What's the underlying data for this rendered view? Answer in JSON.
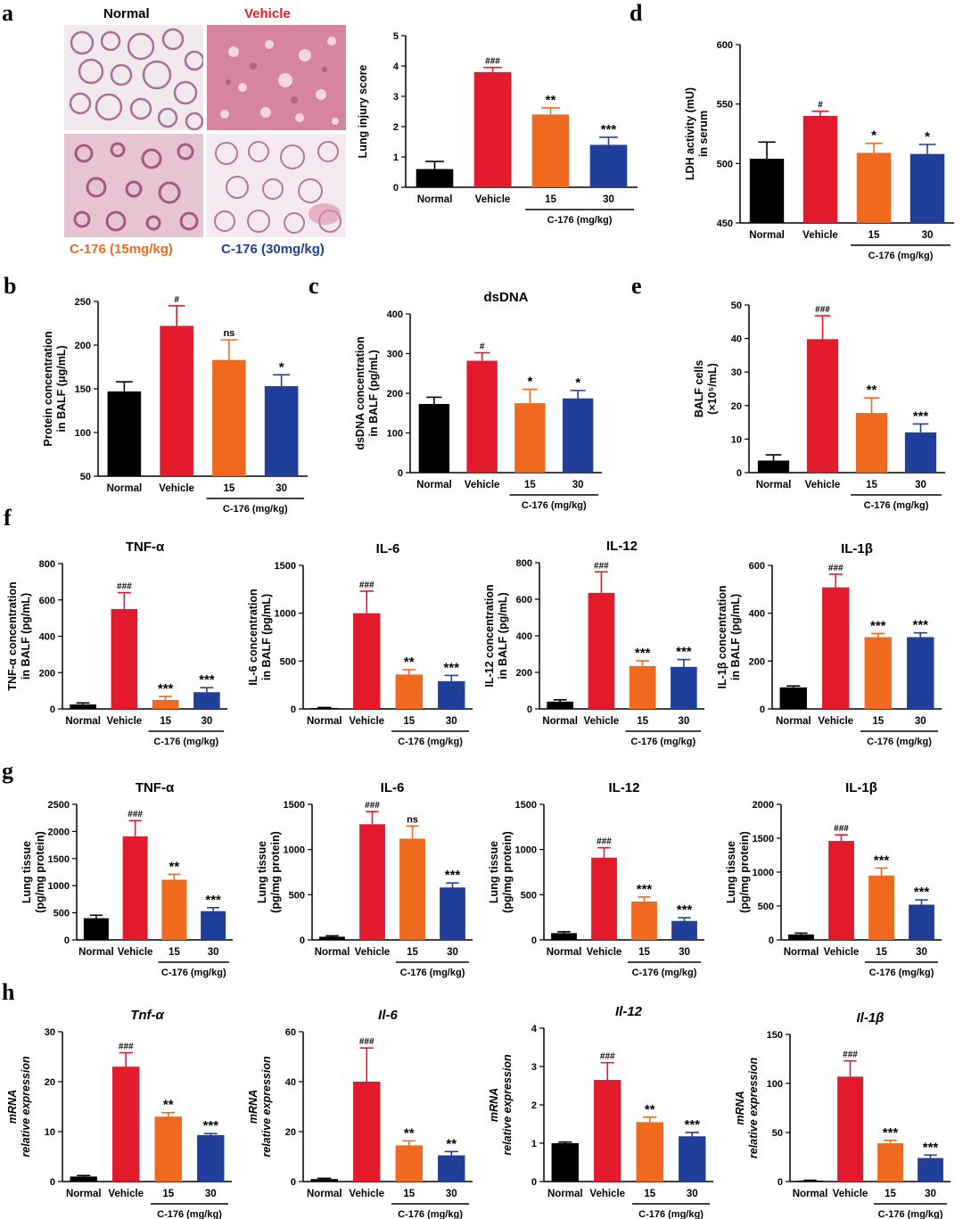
{
  "colors": {
    "normal": "#000000",
    "vehicle": "#e31a2b",
    "c15": "#ef6a1e",
    "c30": "#1f3f9a",
    "axis": "#000000"
  },
  "panels": {
    "a": "a",
    "b": "b",
    "c": "c",
    "d": "d",
    "e": "e",
    "f": "f",
    "g": "g",
    "h": "h"
  },
  "histology": {
    "normal_label": "Normal",
    "vehicle_label": "Vehicle",
    "c15_label": "C-176 (15mg/kg)",
    "c30_label": "C-176 (30mg/kg)"
  },
  "chart_data": [
    {
      "id": "lung_injury",
      "type": "bar",
      "title": "",
      "ylabel": "Lung injury score",
      "ylim": [
        0,
        5
      ],
      "yticks": [
        0,
        1,
        2,
        3,
        4,
        5
      ],
      "categories": [
        "Normal",
        "Vehicle",
        "15",
        "30"
      ],
      "values": [
        0.6,
        3.8,
        2.4,
        1.4
      ],
      "errors": [
        0.25,
        0.15,
        0.22,
        0.25
      ],
      "sig": [
        "",
        "###",
        "**",
        "***"
      ],
      "group_label": "C-176 (mg/kg)"
    },
    {
      "id": "ldh",
      "type": "bar",
      "title": "",
      "ylabel": "LDH activity (mU) in serum",
      "ylim": [
        450,
        600
      ],
      "yticks": [
        450,
        500,
        550,
        600
      ],
      "categories": [
        "Normal",
        "Vehicle",
        "15",
        "30"
      ],
      "values": [
        504,
        540,
        509,
        508
      ],
      "errors": [
        14,
        4,
        8,
        8
      ],
      "sig": [
        "",
        "#",
        "*",
        "*"
      ],
      "group_label": "C-176 (mg/kg)"
    },
    {
      "id": "protein",
      "type": "bar",
      "title": "",
      "ylabel": "Protein concentration in BALF (μg/mL)",
      "ylim": [
        50,
        250
      ],
      "yticks": [
        50,
        100,
        150,
        200,
        250
      ],
      "categories": [
        "Normal",
        "Vehicle",
        "15",
        "30"
      ],
      "values": [
        147,
        222,
        183,
        153
      ],
      "errors": [
        11,
        23,
        23,
        13
      ],
      "sig": [
        "",
        "#",
        "ns",
        "*"
      ],
      "group_label": "C-176 (mg/kg)"
    },
    {
      "id": "dsdna",
      "type": "bar",
      "title": "dsDNA",
      "ylabel": "dsDNA concentration in BALF (pg/mL)",
      "ylim": [
        0,
        400
      ],
      "yticks": [
        0,
        100,
        200,
        300,
        400
      ],
      "categories": [
        "Normal",
        "Vehicle",
        "15",
        "30"
      ],
      "values": [
        173,
        282,
        175,
        187
      ],
      "errors": [
        17,
        20,
        35,
        20
      ],
      "sig": [
        "",
        "#",
        "*",
        "*"
      ],
      "group_label": "C-176 (mg/kg)"
    },
    {
      "id": "balf_cells",
      "type": "bar",
      "title": "",
      "ylabel": "BALF cells (×10⁵/mL)",
      "ylim": [
        0,
        50
      ],
      "yticks": [
        0,
        10,
        20,
        30,
        40,
        50
      ],
      "categories": [
        "Normal",
        "Vehicle",
        "15",
        "30"
      ],
      "values": [
        3.6,
        39.8,
        17.8,
        12.0
      ],
      "errors": [
        1.7,
        7.0,
        4.5,
        2.5
      ],
      "sig": [
        "",
        "###",
        "**",
        "***"
      ],
      "group_label": "C-176 (mg/kg)"
    },
    {
      "id": "f_tnf",
      "type": "bar",
      "title": "TNF-α",
      "ylabel": "TNF-α concentration in BALF (pg/mL)",
      "ylim": [
        0,
        800
      ],
      "yticks": [
        0,
        200,
        400,
        600,
        800
      ],
      "categories": [
        "Normal",
        "Vehicle",
        "15",
        "30"
      ],
      "values": [
        25,
        550,
        50,
        92
      ],
      "errors": [
        8,
        90,
        18,
        25
      ],
      "sig": [
        "",
        "###",
        "***",
        "***"
      ],
      "group_label": "C-176 (mg/kg)"
    },
    {
      "id": "f_il6",
      "type": "bar",
      "title": "IL-6",
      "ylabel": "IL-6 concentration in BALF (pg/mL)",
      "ylim": [
        0,
        1500
      ],
      "yticks": [
        0,
        500,
        1000,
        1500
      ],
      "categories": [
        "Normal",
        "Vehicle",
        "15",
        "30"
      ],
      "values": [
        10,
        1000,
        360,
        290
      ],
      "errors": [
        5,
        230,
        50,
        60
      ],
      "sig": [
        "",
        "###",
        "**",
        "***"
      ],
      "group_label": "C-176 (mg/kg)"
    },
    {
      "id": "f_il12",
      "type": "bar",
      "title": "IL-12",
      "ylabel": "IL-12 concentration in BALF (pg/mL)",
      "ylim": [
        0,
        800
      ],
      "yticks": [
        0,
        200,
        400,
        600,
        800
      ],
      "categories": [
        "Normal",
        "Vehicle",
        "15",
        "30"
      ],
      "values": [
        40,
        635,
        235,
        230
      ],
      "errors": [
        10,
        115,
        28,
        40
      ],
      "sig": [
        "",
        "###",
        "***",
        "***"
      ],
      "group_label": "C-176 (mg/kg)"
    },
    {
      "id": "f_il1b",
      "type": "bar",
      "title": "IL-1β",
      "ylabel": "IL-1β concentration in BALF (pg/mL)",
      "ylim": [
        0,
        600
      ],
      "yticks": [
        0,
        200,
        400,
        600
      ],
      "categories": [
        "Normal",
        "Vehicle",
        "15",
        "30"
      ],
      "values": [
        90,
        508,
        300,
        300
      ],
      "errors": [
        6,
        55,
        15,
        18
      ],
      "sig": [
        "",
        "###",
        "***",
        "***"
      ],
      "group_label": "C-176 (mg/kg)"
    },
    {
      "id": "g_tnf",
      "type": "bar",
      "title": "TNF-α",
      "ylabel": "Lung tissue (pg/mg protein)",
      "ylim": [
        0,
        2500
      ],
      "yticks": [
        0,
        500,
        1000,
        1500,
        2000,
        2500
      ],
      "categories": [
        "Normal",
        "Vehicle",
        "15",
        "30"
      ],
      "values": [
        400,
        1910,
        1110,
        530
      ],
      "errors": [
        55,
        290,
        100,
        65
      ],
      "sig": [
        "",
        "###",
        "**",
        "***"
      ],
      "group_label": "C-176 (mg/kg)"
    },
    {
      "id": "g_il6",
      "type": "bar",
      "title": "IL-6",
      "ylabel": "Lung tissue (pg/mg protein)",
      "ylim": [
        0,
        1500
      ],
      "yticks": [
        0,
        500,
        1000,
        1500
      ],
      "categories": [
        "Normal",
        "Vehicle",
        "15",
        "30"
      ],
      "values": [
        35,
        1280,
        1120,
        580
      ],
      "errors": [
        10,
        140,
        140,
        50
      ],
      "sig": [
        "",
        "###",
        "ns",
        "***"
      ],
      "group_label": "C-176 (mg/kg)"
    },
    {
      "id": "g_il12",
      "type": "bar",
      "title": "IL-12",
      "ylabel": "Lung tissue (pg/mg protein)",
      "ylim": [
        0,
        1500
      ],
      "yticks": [
        0,
        500,
        1000,
        1500
      ],
      "categories": [
        "Normal",
        "Vehicle",
        "15",
        "30"
      ],
      "values": [
        75,
        910,
        425,
        210
      ],
      "errors": [
        15,
        110,
        50,
        35
      ],
      "sig": [
        "",
        "###",
        "***",
        "***"
      ],
      "group_label": "C-176 (mg/kg)"
    },
    {
      "id": "g_il1b",
      "type": "bar",
      "title": "IL-1β",
      "ylabel": "Lung tissue (pg/mg protein)",
      "ylim": [
        0,
        2000
      ],
      "yticks": [
        0,
        500,
        1000,
        1500,
        2000
      ],
      "categories": [
        "Normal",
        "Vehicle",
        "15",
        "30"
      ],
      "values": [
        80,
        1460,
        950,
        520
      ],
      "errors": [
        20,
        90,
        110,
        70
      ],
      "sig": [
        "",
        "###",
        "***",
        "***"
      ],
      "group_label": "C-176 (mg/kg)"
    },
    {
      "id": "h_tnf",
      "type": "bar",
      "title": "Tnf-α",
      "title_italic": true,
      "ylabel": "mRNA relative expression",
      "ylabel_italic": true,
      "ylim": [
        0,
        30
      ],
      "yticks": [
        0,
        10,
        20,
        30
      ],
      "categories": [
        "Normal",
        "Vehicle",
        "15",
        "30"
      ],
      "values": [
        1,
        23,
        13,
        9.3
      ],
      "errors": [
        0.2,
        2.8,
        0.8,
        0.3
      ],
      "sig": [
        "",
        "###",
        "**",
        "***"
      ],
      "group_label": "C-176 (mg/kg)"
    },
    {
      "id": "h_il6",
      "type": "bar",
      "title": "Il-6",
      "title_italic": true,
      "ylabel": "mRNA relative expression",
      "ylabel_italic": true,
      "ylim": [
        0,
        60
      ],
      "yticks": [
        0,
        20,
        40,
        60
      ],
      "categories": [
        "Normal",
        "Vehicle",
        "15",
        "30"
      ],
      "values": [
        1,
        40,
        14.5,
        10.5
      ],
      "errors": [
        0.3,
        13.5,
        1.8,
        1.5
      ],
      "sig": [
        "",
        "###",
        "**",
        "**"
      ],
      "group_label": "C-176 (mg/kg)"
    },
    {
      "id": "h_il12",
      "type": "bar",
      "title": "Il-12",
      "title_italic": true,
      "ylabel": "mRNA relative expression",
      "ylabel_italic": true,
      "ylim": [
        0,
        4
      ],
      "yticks": [
        0,
        1,
        2,
        3,
        4
      ],
      "categories": [
        "Normal",
        "Vehicle",
        "15",
        "30"
      ],
      "values": [
        1.0,
        2.65,
        1.55,
        1.18
      ],
      "errors": [
        0.03,
        0.45,
        0.13,
        0.1
      ],
      "sig": [
        "",
        "###",
        "**",
        "***"
      ],
      "group_label": "C-176 (mg/kg)"
    },
    {
      "id": "h_il1b",
      "type": "bar",
      "title": "Il-1β",
      "title_italic": true,
      "ylabel": "mRNA relative expression",
      "ylabel_italic": true,
      "ylim": [
        0,
        150
      ],
      "yticks": [
        0,
        50,
        100,
        150
      ],
      "categories": [
        "Normal",
        "Vehicle",
        "15",
        "30"
      ],
      "values": [
        1,
        107,
        39,
        24
      ],
      "errors": [
        0.3,
        16,
        3,
        3
      ],
      "sig": [
        "",
        "###",
        "***",
        "***"
      ],
      "group_label": "C-176 (mg/kg)"
    }
  ]
}
